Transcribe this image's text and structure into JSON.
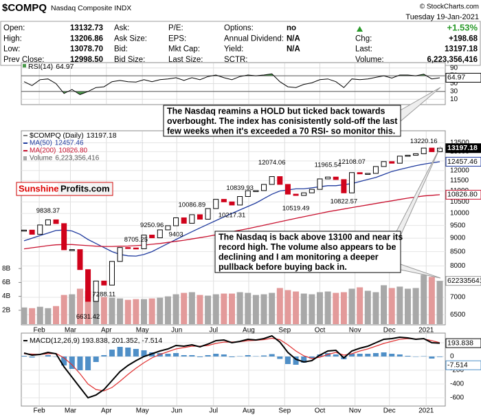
{
  "header": {
    "symbol": "$COMPQ",
    "name": "Nasdaq Composite INDX",
    "source": "© StockCharts.com",
    "date": "Tuesday 19-Jan-2021",
    "rows": [
      [
        {
          "label": "Open:",
          "value": "13132.73"
        },
        {
          "label": "Ask:"
        },
        {
          "label": "P/E:"
        },
        {
          "label": "Options:",
          "value": "no"
        },
        {
          "value": "+1.53%"
        }
      ],
      [
        {
          "label": "High:",
          "value": "13206.86"
        },
        {
          "label": "Ask Size:"
        },
        {
          "label": "EPS:"
        },
        {
          "label": "Annual Dividend:",
          "value": "N/A"
        },
        {
          "label": "Chg:",
          "value": "+198.68"
        }
      ],
      [
        {
          "label": "Low:",
          "value": "13078.70"
        },
        {
          "label": "Bid:"
        },
        {
          "label": "Mkt Cap:"
        },
        {
          "label": "Yield:",
          "value": "N/A"
        },
        {
          "label": "Last:",
          "value": "13197.18"
        }
      ],
      [
        {
          "label": "Prev Close:",
          "value": "12998.50"
        },
        {
          "label": "Bid Size:"
        },
        {
          "label": "Last Size:"
        },
        {
          "label": "SCTR:"
        },
        {
          "label": "Volume:",
          "value": "6,223,356,416"
        }
      ]
    ]
  },
  "logo": {
    "left": "Sunshine",
    "right": "Profits.com"
  },
  "notes": [
    [
      "The Nasdaq reamins a HOLD but ticked back towards",
      "overbought. The index has conisistently sold-off the last",
      "few weeks when it's exceeded a 70 RSI- so monitor this."
    ],
    [
      "The Nasdaq is back above 13100 and near its",
      "record high. The volume also appears to be",
      "declining and I am monitoring a deeper",
      "pullback before buying back in."
    ]
  ],
  "chart_data": [
    {
      "type": "rsi",
      "name": "RSI(14)",
      "color": "#000000",
      "band_color": "#4a9a4a",
      "values": [
        55,
        45,
        60,
        62,
        50,
        25,
        35,
        22,
        30,
        40,
        42,
        55,
        58,
        55,
        54,
        60,
        55,
        60,
        62,
        65,
        58,
        65,
        60,
        68,
        72,
        65,
        60,
        68,
        72,
        70,
        72,
        75,
        55,
        42,
        40,
        48,
        52,
        60,
        62,
        55,
        40,
        62,
        60,
        62,
        66,
        70,
        64,
        72,
        72,
        70,
        74,
        62,
        64.97
      ],
      "ylim": [
        0,
        100
      ],
      "yticks": [
        90,
        70,
        50,
        30,
        10
      ],
      "bands": [
        70,
        30
      ]
    },
    {
      "type": "candlestick",
      "name": "$COMPQ (Daily)",
      "up_color": "#000000",
      "down_color": "#d0021b",
      "log": true,
      "values": [
        9315,
        9151,
        9520,
        9731,
        9577,
        8567,
        8575,
        7875,
        6880,
        7502,
        7373,
        8154,
        8650,
        8634,
        8605,
        9121,
        9015,
        9325,
        9490,
        9815,
        9589,
        9946,
        9757,
        10208,
        10617,
        10503,
        10363,
        10745,
        11011,
        11019,
        11312,
        11695,
        11313,
        10854,
        10793,
        10914,
        11076,
        11580,
        11672,
        11548,
        10912,
        11895,
        11830,
        11855,
        12206,
        12464,
        12378,
        12756,
        12805,
        12888,
        13202,
        12998,
        13197.18
      ],
      "series": [
        {
          "name": "MA(50)",
          "color": "#1f3a9e",
          "values": [
            8900,
            9000,
            9100,
            9200,
            9300,
            9320,
            9280,
            9150,
            8950,
            8800,
            8650,
            8500,
            8400,
            8350,
            8340,
            8400,
            8500,
            8650,
            8800,
            8950,
            9100,
            9250,
            9400,
            9550,
            9700,
            9850,
            10000,
            10150,
            10300,
            10450,
            10650,
            10850,
            11000,
            11050,
            11100,
            11100,
            11150,
            11200,
            11250,
            11250,
            11300,
            11350,
            11450,
            11550,
            11650,
            11800,
            11950,
            12050,
            12150,
            12250,
            12330,
            12400,
            12457.46
          ]
        },
        {
          "name": "MA(200)",
          "color": "#c8102e",
          "legend_value": "10826.80",
          "values": [
            8600,
            8640,
            8680,
            8720,
            8750,
            8760,
            8760,
            8740,
            8720,
            8700,
            8690,
            8690,
            8700,
            8705,
            8720,
            8740,
            8770,
            8800,
            8840,
            8880,
            8920,
            8970,
            9020,
            9070,
            9130,
            9190,
            9250,
            9310,
            9370,
            9440,
            9510,
            9580,
            9650,
            9720,
            9790,
            9860,
            9930,
            10000,
            10070,
            10130,
            10190,
            10250,
            10310,
            10370,
            10430,
            10490,
            10550,
            10610,
            10670,
            10720,
            10770,
            10800,
            10826.8
          ]
        }
      ],
      "volume": {
        "name": "Volume",
        "legend_value": "6,223,356,416",
        "up_color": "#a8a8a8",
        "down_color": "#e39a9a",
        "values": [
          2400000000,
          2300000000,
          2500000000,
          2300000000,
          2600000000,
          4200000000,
          4300000000,
          5100000000,
          4800000000,
          4400000000,
          3900000000,
          3800000000,
          3700000000,
          3500000000,
          3600000000,
          3600000000,
          3700000000,
          3800000000,
          4000000000,
          4300000000,
          4500000000,
          4600000000,
          4200000000,
          4100000000,
          4300000000,
          4400000000,
          4400000000,
          4600000000,
          4500000000,
          4200000000,
          4300000000,
          4500000000,
          5200000000,
          4900000000,
          4700000000,
          4400000000,
          4300000000,
          4600000000,
          4700000000,
          4500000000,
          4600000000,
          5100000000,
          5300000000,
          4800000000,
          4600000000,
          5600000000,
          5200000000,
          5400000000,
          5100000000,
          5200000000,
          7100000000,
          6800000000,
          6223356416
        ],
        "ylim": [
          0,
          10000000000
        ],
        "yticks": [
          {
            "value": 2000000000,
            "label": "2B"
          },
          {
            "value": 4000000000,
            "label": "4B"
          },
          {
            "value": 6000000000,
            "label": "6B"
          },
          {
            "value": 8000000000,
            "label": "8B"
          }
        ]
      },
      "points": [
        {
          "value": 9838.37,
          "x": 3
        },
        {
          "value": 6631.42,
          "x": 8
        },
        {
          "value": 7288.11,
          "x": 10
        },
        {
          "value": 8705.25,
          "x": 14
        },
        {
          "value": 9250.96,
          "x": 16
        },
        {
          "value": 9403.0,
          "x": 19
        },
        {
          "value": 10086.89,
          "x": 21
        },
        {
          "value": 10217.31,
          "x": 26
        },
        {
          "value": 10839.93,
          "x": 27
        },
        {
          "value": 12074.06,
          "x": 31
        },
        {
          "value": 10519.49,
          "x": 34
        },
        {
          "value": 11965.54,
          "x": 38
        },
        {
          "value": 12108.07,
          "x": 41
        },
        {
          "value": 10822.57,
          "x": 40
        },
        {
          "value": 13220.16,
          "x": 50
        }
      ],
      "ylim": [
        6300,
        13800
      ],
      "yticks": [
        6500,
        7000,
        7500,
        8000,
        8500,
        9000,
        9500,
        10000,
        10500,
        11000,
        11500,
        12000,
        12500,
        13000,
        13500
      ],
      "xticks": [
        {
          "value": 1.9,
          "label": "Feb"
        },
        {
          "value": 5.8,
          "label": "Mar"
        },
        {
          "value": 10.3,
          "label": "Apr"
        },
        {
          "value": 14.8,
          "label": "May"
        },
        {
          "value": 19.1,
          "label": "Jun"
        },
        {
          "value": 23.7,
          "label": "Jul"
        },
        {
          "value": 28.1,
          "label": "Aug"
        },
        {
          "value": 32.6,
          "label": "Sep"
        },
        {
          "value": 37,
          "label": "Oct"
        },
        {
          "value": 41.4,
          "label": "Nov"
        },
        {
          "value": 45.7,
          "label": "Dec"
        },
        {
          "value": 50.3,
          "label": "2021"
        }
      ],
      "grid": true
    },
    {
      "type": "macd",
      "legend": "MACD(12,26,9) 193.838, 201.352, -7.514",
      "series": [
        {
          "name": "MACD",
          "color": "#000000",
          "values": [
            50,
            20,
            30,
            60,
            40,
            -150,
            -300,
            -450,
            -600,
            -560,
            -480,
            -350,
            -220,
            -130,
            -60,
            0,
            40,
            80,
            110,
            160,
            150,
            170,
            140,
            180,
            230,
            240,
            200,
            220,
            250,
            240,
            260,
            300,
            210,
            60,
            -40,
            -80,
            -60,
            20,
            80,
            90,
            -20,
            80,
            120,
            150,
            200,
            250,
            260,
            280,
            270,
            250,
            260,
            200,
            193.838
          ]
        },
        {
          "name": "Signal",
          "color": "#e03030",
          "values": [
            40,
            35,
            30,
            40,
            45,
            -20,
            -120,
            -250,
            -400,
            -480,
            -500,
            -450,
            -360,
            -260,
            -170,
            -90,
            -20,
            30,
            70,
            110,
            130,
            150,
            150,
            160,
            190,
            210,
            210,
            215,
            230,
            235,
            245,
            265,
            245,
            170,
            80,
            10,
            -30,
            -10,
            30,
            60,
            20,
            40,
            80,
            110,
            150,
            190,
            220,
            250,
            260,
            255,
            255,
            230,
            201.352
          ]
        },
        {
          "name": "Histogram",
          "color": "#4f8fc7",
          "values": [
            10,
            -15,
            0,
            20,
            -5,
            -130,
            -180,
            -200,
            -200,
            -80,
            20,
            100,
            140,
            130,
            110,
            90,
            60,
            50,
            40,
            50,
            20,
            20,
            -10,
            20,
            40,
            30,
            -10,
            5,
            20,
            5,
            15,
            35,
            -35,
            -110,
            -120,
            -90,
            -30,
            30,
            50,
            30,
            -40,
            40,
            40,
            40,
            50,
            60,
            40,
            30,
            10,
            -5,
            5,
            -30,
            -7.514
          ]
        }
      ],
      "ylim": [
        -700,
        300
      ],
      "yticks": [
        200,
        0,
        -200,
        -400,
        -600
      ],
      "xticks": [
        {
          "value": 1.9,
          "label": "Feb"
        },
        {
          "value": 5.8,
          "label": "Mar"
        },
        {
          "value": 10.3,
          "label": "Apr"
        },
        {
          "value": 14.8,
          "label": "May"
        },
        {
          "value": 19.1,
          "label": "Jun"
        },
        {
          "value": 23.7,
          "label": "Jul"
        },
        {
          "value": 28.1,
          "label": "Aug"
        },
        {
          "value": 32.6,
          "label": "Sep"
        },
        {
          "value": 37,
          "label": "Oct"
        },
        {
          "value": 41.4,
          "label": "Nov"
        },
        {
          "value": 45.7,
          "label": "Dec"
        },
        {
          "value": 50.3,
          "label": "2021"
        }
      ]
    }
  ]
}
